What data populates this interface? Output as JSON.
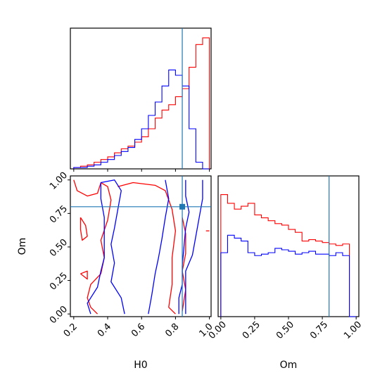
{
  "chart_data": {
    "type": "corner",
    "parameters": [
      "H0",
      "Om"
    ],
    "truth": {
      "H0": 0.84,
      "Om": 0.8
    },
    "colors": {
      "series_a": "#ff0000",
      "series_b": "#0000ff",
      "truth": "#1f77b4"
    },
    "h0_hist": {
      "bin_edges": [
        0.2,
        0.24,
        0.28,
        0.32,
        0.36,
        0.4,
        0.44,
        0.48,
        0.52,
        0.56,
        0.6,
        0.64,
        0.68,
        0.72,
        0.76,
        0.8,
        0.84,
        0.88,
        0.92,
        0.96,
        1.0
      ],
      "series": [
        {
          "color": "red",
          "values": [
            0.01,
            0.02,
            0.03,
            0.05,
            0.07,
            0.09,
            0.12,
            0.15,
            0.17,
            0.2,
            0.24,
            0.3,
            0.38,
            0.44,
            0.48,
            0.54,
            0.6,
            0.76,
            0.93,
            0.98
          ]
        },
        {
          "color": "blue",
          "values": [
            0.01,
            0.01,
            0.02,
            0.03,
            0.05,
            0.07,
            0.1,
            0.13,
            0.16,
            0.22,
            0.3,
            0.4,
            0.5,
            0.62,
            0.74,
            0.7,
            0.62,
            0.3,
            0.05,
            0.0
          ]
        }
      ]
    },
    "om_hist": {
      "bin_edges": [
        0.0,
        0.05,
        0.1,
        0.15,
        0.2,
        0.25,
        0.3,
        0.35,
        0.4,
        0.45,
        0.5,
        0.55,
        0.6,
        0.65,
        0.7,
        0.75,
        0.8,
        0.85,
        0.9,
        0.95,
        1.0
      ],
      "series": [
        {
          "color": "red",
          "values": [
            0.84,
            0.78,
            0.74,
            0.76,
            0.78,
            0.7,
            0.68,
            0.66,
            0.64,
            0.63,
            0.6,
            0.58,
            0.52,
            0.53,
            0.52,
            0.51,
            0.5,
            0.49,
            0.5,
            0.0
          ]
        },
        {
          "color": "blue",
          "values": [
            0.44,
            0.56,
            0.54,
            0.52,
            0.44,
            0.42,
            0.43,
            0.44,
            0.47,
            0.46,
            0.45,
            0.43,
            0.44,
            0.45,
            0.43,
            0.43,
            0.42,
            0.44,
            0.42,
            0.0
          ]
        }
      ]
    },
    "contours": {
      "x_param": "H0",
      "y_param": "Om",
      "series": [
        {
          "color": "red",
          "paths": [
            [
              [
                0.2,
                1.0
              ],
              [
                0.22,
                0.92
              ],
              [
                0.28,
                0.88
              ],
              [
                0.34,
                0.9
              ],
              [
                0.36,
                0.98
              ],
              [
                0.4,
                0.95
              ],
              [
                0.42,
                0.85
              ],
              [
                0.4,
                0.7
              ],
              [
                0.36,
                0.55
              ],
              [
                0.38,
                0.42
              ],
              [
                0.36,
                0.3
              ],
              [
                0.3,
                0.22
              ],
              [
                0.28,
                0.12
              ],
              [
                0.3,
                0.05
              ],
              [
                0.34,
                0.0
              ]
            ],
            [
              [
                0.24,
                0.72
              ],
              [
                0.27,
                0.66
              ],
              [
                0.28,
                0.58
              ],
              [
                0.25,
                0.55
              ],
              [
                0.24,
                0.63
              ],
              [
                0.24,
                0.72
              ]
            ],
            [
              [
                0.24,
                0.3
              ],
              [
                0.28,
                0.32
              ],
              [
                0.28,
                0.26
              ],
              [
                0.24,
                0.3
              ]
            ],
            [
              [
                0.46,
                0.95
              ],
              [
                0.55,
                0.98
              ],
              [
                0.68,
                0.96
              ],
              [
                0.74,
                0.92
              ],
              [
                0.78,
                0.78
              ],
              [
                0.8,
                0.62
              ],
              [
                0.78,
                0.42
              ],
              [
                0.78,
                0.22
              ],
              [
                0.76,
                0.05
              ],
              [
                0.8,
                0.0
              ]
            ],
            [
              [
                0.84,
                0.72
              ],
              [
                0.86,
                0.6
              ],
              [
                0.86,
                0.45
              ],
              [
                0.84,
                0.32
              ],
              [
                0.86,
                0.18
              ],
              [
                0.84,
                0.02
              ]
            ],
            [
              [
                0.98,
                0.62
              ],
              [
                1.0,
                0.62
              ]
            ]
          ]
        },
        {
          "color": "blue",
          "paths": [
            [
              [
                0.36,
                0.98
              ],
              [
                0.44,
                1.0
              ],
              [
                0.48,
                0.92
              ],
              [
                0.46,
                0.78
              ],
              [
                0.44,
                0.64
              ],
              [
                0.42,
                0.52
              ],
              [
                0.44,
                0.38
              ],
              [
                0.42,
                0.24
              ],
              [
                0.48,
                0.12
              ],
              [
                0.5,
                0.0
              ]
            ],
            [
              [
                0.36,
                0.98
              ],
              [
                0.36,
                0.86
              ],
              [
                0.38,
                0.72
              ],
              [
                0.38,
                0.56
              ],
              [
                0.38,
                0.42
              ],
              [
                0.36,
                0.32
              ],
              [
                0.34,
                0.2
              ],
              [
                0.3,
                0.12
              ],
              [
                0.28,
                0.08
              ],
              [
                0.3,
                0.0
              ]
            ],
            [
              [
                0.74,
                1.0
              ],
              [
                0.76,
                0.86
              ],
              [
                0.74,
                0.72
              ],
              [
                0.72,
                0.56
              ],
              [
                0.7,
                0.42
              ],
              [
                0.68,
                0.3
              ],
              [
                0.66,
                0.14
              ],
              [
                0.64,
                0.0
              ]
            ],
            [
              [
                0.86,
                1.0
              ],
              [
                0.86,
                0.88
              ],
              [
                0.88,
                0.76
              ],
              [
                0.86,
                0.64
              ],
              [
                0.85,
                0.5
              ],
              [
                0.84,
                0.36
              ],
              [
                0.84,
                0.22
              ],
              [
                0.82,
                0.12
              ],
              [
                0.82,
                0.0
              ]
            ],
            [
              [
                0.96,
                1.0
              ],
              [
                0.96,
                0.86
              ],
              [
                0.94,
                0.72
              ],
              [
                0.92,
                0.58
              ],
              [
                0.9,
                0.44
              ],
              [
                0.86,
                0.32
              ],
              [
                0.86,
                0.0
              ]
            ]
          ]
        }
      ]
    },
    "h0_ticks": [
      "0.2",
      "0.4",
      "0.6",
      "0.8",
      "1.0"
    ],
    "h0_tick_values": [
      0.2,
      0.4,
      0.6,
      0.8,
      1.0
    ],
    "om_ticks": [
      "0.00",
      "0.25",
      "0.50",
      "0.75",
      "1.00"
    ],
    "om_tick_values": [
      0.0,
      0.25,
      0.5,
      0.75,
      1.0
    ],
    "xlabel_h0": "H0",
    "xlabel_om": "Om",
    "ylabel_om": "Om"
  }
}
